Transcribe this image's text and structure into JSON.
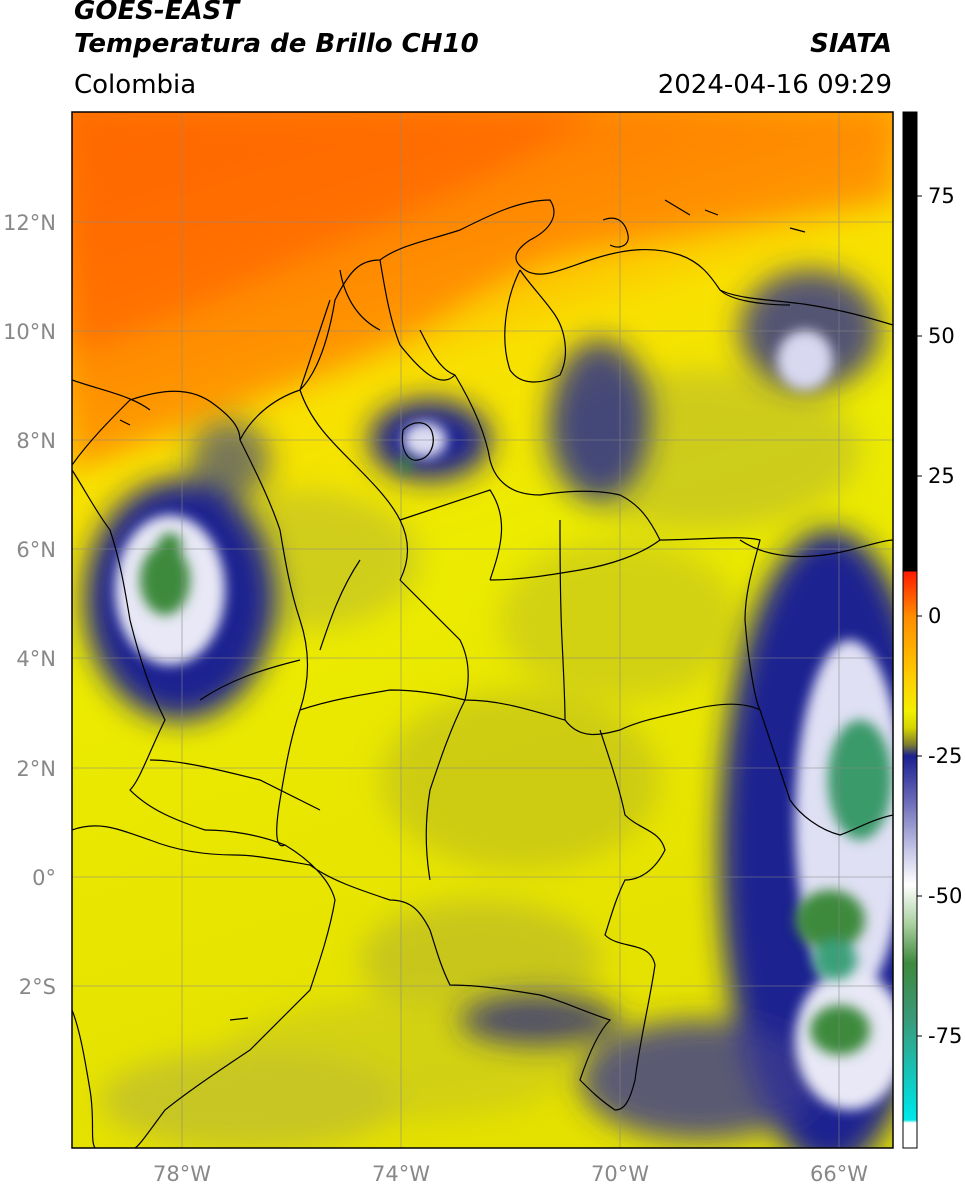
{
  "header": {
    "satellite": "GOES-EAST",
    "product": "Temperatura de Brillo CH10",
    "region": "Colombia",
    "source": "SIATA",
    "datetime": "2024-04-16 09:29"
  },
  "map": {
    "lat_labels": [
      "12°N",
      "10°N",
      "8°N",
      "6°N",
      "4°N",
      "2°N",
      "0°",
      "2°S"
    ],
    "lon_labels": [
      "78°W",
      "74°W",
      "70°W",
      "66°W"
    ],
    "extent": {
      "lon_min": -80.0,
      "lon_max": -65.0,
      "lat_min": -4.9,
      "lat_max": 14.0
    },
    "colors": {
      "border": "#000000",
      "grid": "#888888"
    }
  },
  "colorbar": {
    "ticks": [
      "75",
      "50",
      "25",
      "0",
      "-25",
      "-50",
      "-75"
    ],
    "tick_values": [
      75,
      50,
      25,
      0,
      -25,
      -50,
      -75
    ],
    "range": [
      -95,
      90
    ],
    "stops": [
      {
        "v": 90,
        "c": "#000000"
      },
      {
        "v": 8,
        "c": "#000000"
      },
      {
        "v": 7.9,
        "c": "#ff1a00"
      },
      {
        "v": 0,
        "c": "#ff8c00"
      },
      {
        "v": -10,
        "c": "#ffc800"
      },
      {
        "v": -17,
        "c": "#f3f000"
      },
      {
        "v": -20,
        "c": "#d4d400"
      },
      {
        "v": -23,
        "c": "#7c7c30"
      },
      {
        "v": -25,
        "c": "#1c2090"
      },
      {
        "v": -33,
        "c": "#6a6ab8"
      },
      {
        "v": -42,
        "c": "#c8c8e8"
      },
      {
        "v": -48,
        "c": "#ffffff"
      },
      {
        "v": -55,
        "c": "#aad0a0"
      },
      {
        "v": -62,
        "c": "#3e8a3e"
      },
      {
        "v": -72,
        "c": "#3a9a7a"
      },
      {
        "v": -88,
        "c": "#00e0e0"
      },
      {
        "v": -90,
        "c": "#00e8e8"
      },
      {
        "v": -90.5,
        "c": "#ffffff"
      },
      {
        "v": -95,
        "c": "#ffffff"
      }
    ]
  }
}
